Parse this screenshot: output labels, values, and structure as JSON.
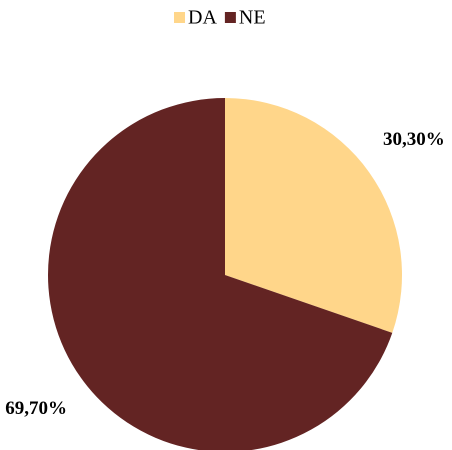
{
  "chart_data": {
    "type": "pie",
    "categories": [
      "DA",
      "NE"
    ],
    "values": [
      30.3,
      69.7
    ],
    "value_labels": [
      "30,30%",
      "69,70%"
    ],
    "colors": [
      "#ffd68a",
      "#632423"
    ],
    "legend": "top"
  }
}
